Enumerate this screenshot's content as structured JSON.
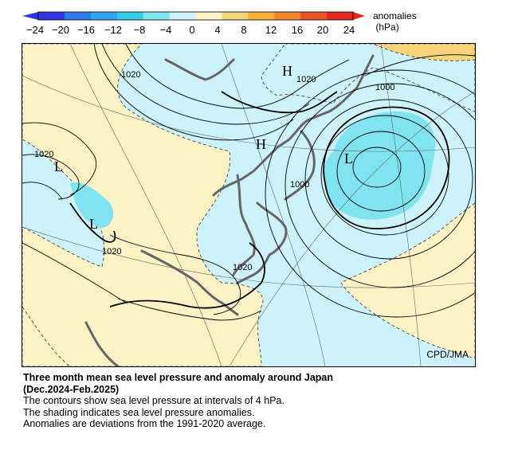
{
  "legend": {
    "units_line1": "anomalies",
    "units_line2": "(hPa)",
    "ticks": [
      "−24",
      "−20",
      "−16",
      "−12",
      "−8",
      "−4",
      "0",
      "4",
      "8",
      "12",
      "16",
      "20",
      "24"
    ],
    "colors": [
      "#3535e0",
      "#2f7ce8",
      "#2fa6ef",
      "#35cde8",
      "#7fe3f0",
      "#cdf2fa",
      "#fbf3c6",
      "#f5d57a",
      "#f4b23a",
      "#f0852c",
      "#e8542a",
      "#e02a22"
    ]
  },
  "map": {
    "contour_interval_hpa": 4,
    "contour_labels": [
      "1020",
      "1020",
      "1020",
      "1020",
      "1020",
      "1000",
      "1000"
    ],
    "pressure_centers": [
      "H",
      "H",
      "L",
      "L",
      "L"
    ],
    "credit": "CPD/JMA"
  },
  "caption": {
    "title_line1": "Three month mean sea level pressure and anomaly around Japan",
    "title_line2": "(Dec.2024-Feb.2025)",
    "line1": "The contours show sea level pressure at intervals of 4 hPa.",
    "line2": "The shading indicates sea level pressure anomalies.",
    "line3": "Anomalies are deviations from the 1991-2020 average."
  }
}
